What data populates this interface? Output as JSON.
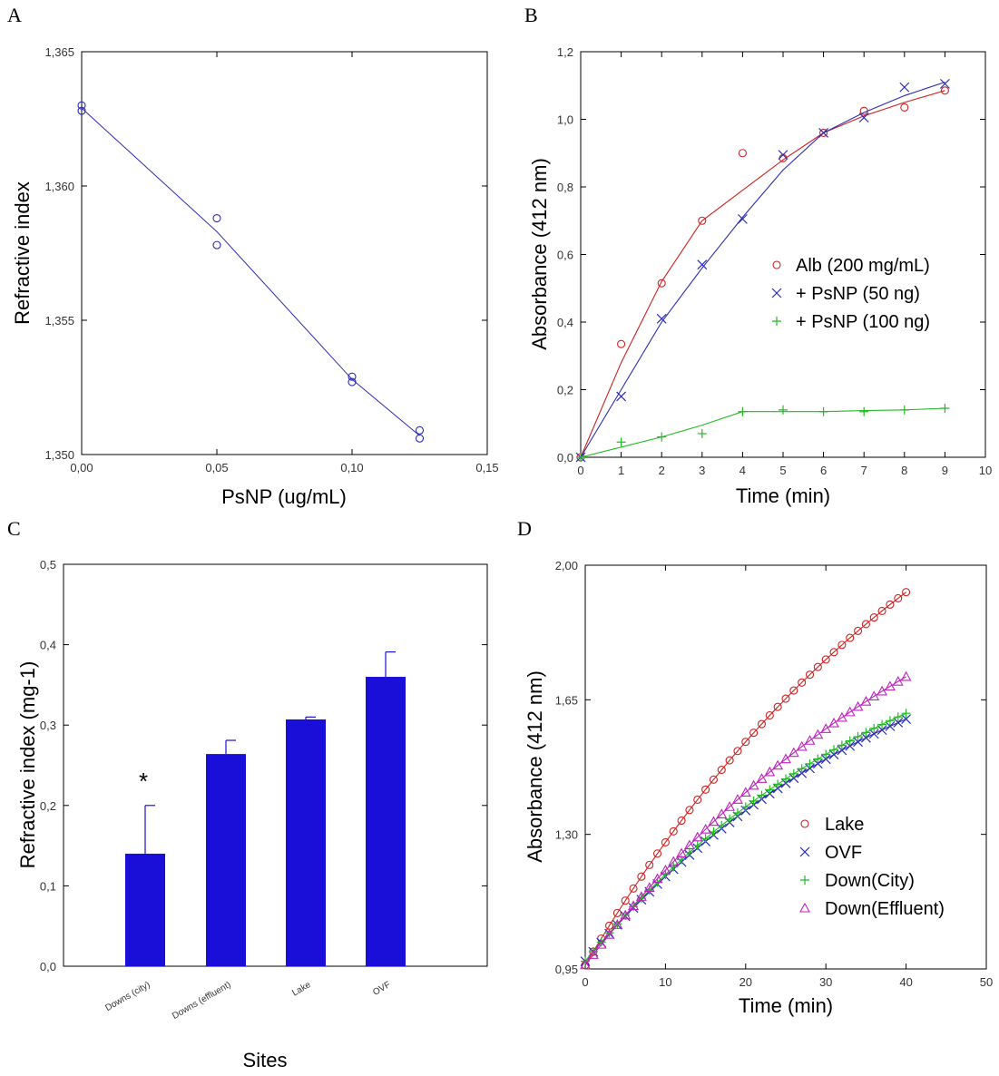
{
  "chart_data": [
    {
      "panel": "A",
      "type": "scatter",
      "xlabel": "PsNP (ug/mL)",
      "ylabel": "Refractive index",
      "xlim": [
        0,
        0.15
      ],
      "ylim": [
        1.35,
        1.365
      ],
      "xticks": [
        "0,00",
        "0,05",
        "0,10",
        "0,15"
      ],
      "yticks": [
        "1,350",
        "1,355",
        "1,360",
        "1,365"
      ],
      "grid": false,
      "colors": {
        "marker": "#2b2bb5",
        "line": "#2b2bb5"
      },
      "points": [
        {
          "x": 0.0,
          "y": 1.363
        },
        {
          "x": 0.0,
          "y": 1.3628
        },
        {
          "x": 0.05,
          "y": 1.3588
        },
        {
          "x": 0.05,
          "y": 1.3578
        },
        {
          "x": 0.1,
          "y": 1.3529
        },
        {
          "x": 0.1,
          "y": 1.3527
        },
        {
          "x": 0.125,
          "y": 1.3509
        },
        {
          "x": 0.125,
          "y": 1.3506
        }
      ],
      "fit_line": [
        {
          "x": 0.0,
          "y": 1.3629
        },
        {
          "x": 0.05,
          "y": 1.3583
        },
        {
          "x": 0.1,
          "y": 1.3528
        },
        {
          "x": 0.125,
          "y": 1.3507
        }
      ]
    },
    {
      "panel": "B",
      "type": "scatter",
      "xlabel": "Time (min)",
      "ylabel": "Absorbance (412 nm)",
      "xlim": [
        0,
        10
      ],
      "ylim": [
        0,
        1.2
      ],
      "xticks": [
        "0",
        "1",
        "2",
        "3",
        "4",
        "5",
        "6",
        "7",
        "8",
        "9",
        "10"
      ],
      "yticks": [
        "0,0",
        "0,2",
        "0,4",
        "0,6",
        "0,8",
        "1,0",
        "1,2"
      ],
      "grid": false,
      "legend_position": "right",
      "series": [
        {
          "name": "Alb (200 mg/mL)",
          "marker": "circle",
          "color": "#d02020",
          "x": [
            0,
            1,
            2,
            3,
            4,
            5,
            6,
            7,
            8,
            9
          ],
          "y": [
            0.0,
            0.335,
            0.515,
            0.7,
            0.9,
            0.885,
            0.96,
            1.025,
            1.035,
            1.085
          ],
          "fit": [
            0.0,
            0.28,
            0.52,
            0.7,
            0.79,
            0.88,
            0.96,
            1.01,
            1.05,
            1.085
          ]
        },
        {
          "name": "+ PsNP (50 ng)",
          "marker": "x",
          "color": "#2b2bb5",
          "x": [
            0,
            1,
            2,
            3,
            4,
            5,
            6,
            7,
            8,
            9
          ],
          "y": [
            0.0,
            0.18,
            0.41,
            0.57,
            0.705,
            0.895,
            0.96,
            1.005,
            1.095,
            1.105
          ],
          "fit": [
            0.0,
            0.2,
            0.4,
            0.56,
            0.71,
            0.85,
            0.96,
            1.02,
            1.07,
            1.11
          ]
        },
        {
          "name": "+ PsNP (100 ng)",
          "marker": "plus",
          "color": "#22bb22",
          "x": [
            0,
            1,
            2,
            3,
            4,
            5,
            6,
            7,
            8,
            9
          ],
          "y": [
            0.0,
            0.045,
            0.06,
            0.07,
            0.135,
            0.14,
            0.135,
            0.135,
            0.14,
            0.145
          ],
          "fit": [
            0.0,
            0.03,
            0.06,
            0.095,
            0.135,
            0.135,
            0.135,
            0.138,
            0.14,
            0.145
          ]
        }
      ]
    },
    {
      "panel": "C",
      "type": "bar",
      "xlabel": "Sites",
      "ylabel": "Refractive index (mg-1)",
      "ylim": [
        0,
        0.5
      ],
      "yticks": [
        "0,0",
        "0,1",
        "0,2",
        "0,3",
        "0,4",
        "0,5"
      ],
      "grid": false,
      "bar_color": "#1a0fd8",
      "categories": [
        "Downs (city)",
        "Downs (effluent)",
        "Lake",
        "OVF"
      ],
      "values": [
        0.14,
        0.264,
        0.307,
        0.36
      ],
      "errors": [
        0.06,
        0.017,
        0.003,
        0.031
      ],
      "annotations": [
        {
          "category": "Downs (city)",
          "text": "*"
        }
      ]
    },
    {
      "panel": "D",
      "type": "scatter",
      "xlabel": "Time (min)",
      "ylabel": "Absorbance (412 nm)",
      "xlim": [
        0,
        50
      ],
      "ylim": [
        0.95,
        2.0
      ],
      "xticks": [
        "0",
        "10",
        "20",
        "30",
        "40",
        "50"
      ],
      "yticks": [
        "0,95",
        "1,30",
        "1,65",
        "2,00"
      ],
      "grid": false,
      "legend_position": "right",
      "series": [
        {
          "name": "Lake",
          "marker": "circle",
          "color": "#d02020",
          "start": 0.96,
          "end": 1.93,
          "k": 0.02
        },
        {
          "name": "OVF",
          "marker": "x",
          "color": "#2b2bb5",
          "start": 0.97,
          "end": 1.6,
          "k": 0.025
        },
        {
          "name": "Down(City)",
          "marker": "plus",
          "color": "#22bb22",
          "start": 0.97,
          "end": 1.615,
          "k": 0.025
        },
        {
          "name": "Down(Effluent)",
          "marker": "triangle",
          "color": "#c020c0",
          "start": 0.96,
          "end": 1.71,
          "k": 0.02
        }
      ],
      "x_range_points": [
        0,
        40
      ]
    }
  ]
}
